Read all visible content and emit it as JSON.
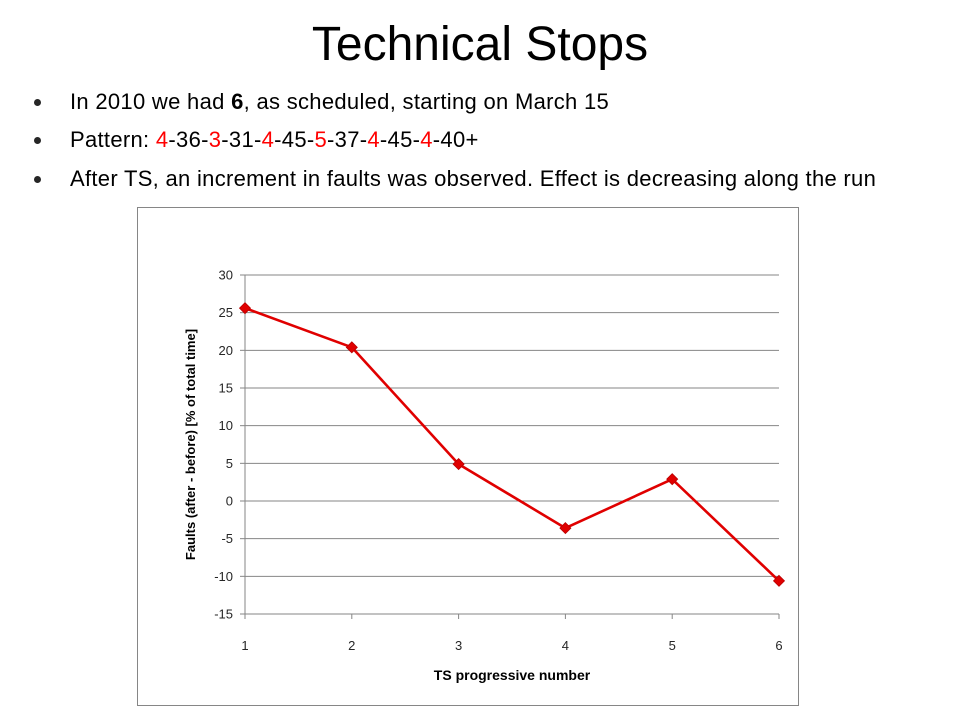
{
  "slide": {
    "title": "Technical Stops",
    "bullets": [
      {
        "segments": [
          {
            "text": "In 2010 we had "
          },
          {
            "text": "6",
            "bold": true
          },
          {
            "text": ", as scheduled, starting on March 15"
          }
        ]
      },
      {
        "segments": [
          {
            "text": "Pattern: "
          },
          {
            "text": "4",
            "highlight": true
          },
          {
            "text": "-36-"
          },
          {
            "text": "3",
            "highlight": true
          },
          {
            "text": "-31-"
          },
          {
            "text": "4",
            "highlight": true
          },
          {
            "text": "-45-"
          },
          {
            "text": "5",
            "highlight": true
          },
          {
            "text": "-37-"
          },
          {
            "text": "4",
            "highlight": true
          },
          {
            "text": "-45-"
          },
          {
            "text": "4",
            "highlight": true
          },
          {
            "text": "-40+"
          }
        ]
      },
      {
        "segments": [
          {
            "text": "After TS, an increment in faults was observed. Effect is decreasing along the run"
          }
        ]
      }
    ]
  },
  "colors": {
    "text": "#000000",
    "highlight": "#ff0000",
    "grid": "#868686",
    "border": "#868686",
    "marker_edge": "#b80000"
  },
  "chart_data": {
    "type": "line",
    "x": [
      1,
      2,
      3,
      4,
      5,
      6
    ],
    "series": [
      {
        "values": [
          25.6,
          20.4,
          4.9,
          -3.6,
          2.9,
          -10.6
        ],
        "color": "#e00000",
        "marker": "diamond"
      }
    ],
    "xlabel": "TS progressive number",
    "ylabel": "Faults (after - before) [% of total time]",
    "xlim": [
      1,
      6
    ],
    "ylim": [
      -15,
      30
    ],
    "yticks": [
      30,
      25,
      20,
      15,
      10,
      5,
      0,
      -5,
      -10,
      -15
    ],
    "grid": "horizontal",
    "legend": "none"
  }
}
